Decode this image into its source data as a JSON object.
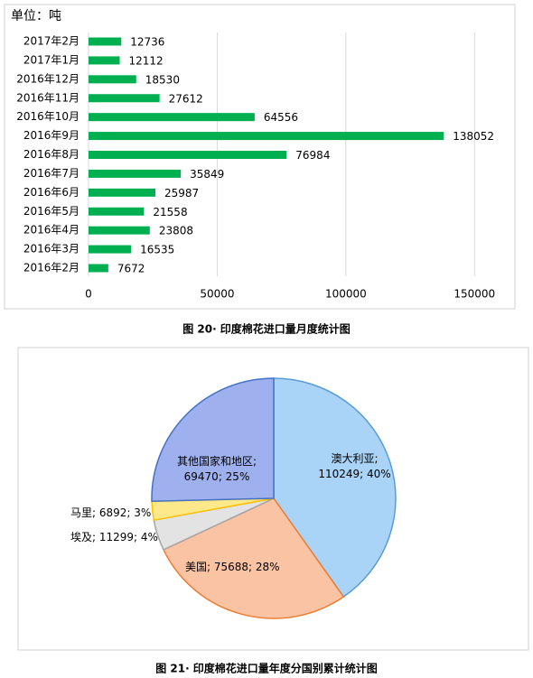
{
  "chart_data": [
    {
      "type": "bar",
      "title": "单位：吨",
      "categories": [
        "2017年2月",
        "2017年1月",
        "2016年12月",
        "2016年11月",
        "2016年10月",
        "2016年9月",
        "2016年8月",
        "2016年7月",
        "2016年6月",
        "2016年5月",
        "2016年4月",
        "2016年3月",
        "2016年2月"
      ],
      "values": [
        12736,
        12112,
        18530,
        27612,
        64556,
        138052,
        76984,
        35849,
        25987,
        21558,
        23808,
        16535,
        7672
      ],
      "color": "#00b050",
      "xlim": [
        0,
        165000
      ],
      "xticks": [
        0,
        50000,
        100000,
        150000
      ],
      "grid": true,
      "caption": "图 20· 印度棉花进口量月度统计图"
    },
    {
      "type": "pie",
      "values": [
        110249,
        75688,
        11299,
        6892,
        69470
      ],
      "value_labels": [
        "澳大利亚; 110249; 40%",
        "美国; 75688; 28%",
        "埃及; 11299; 4%",
        "马里; 6892; 3%",
        "其他国家和地区; 69470; 25%"
      ],
      "colors": [
        "#a9d3f7",
        "#f9c3a4",
        "#e3e3e3",
        "#fde98a",
        "#9fb0ee"
      ],
      "caption": "图 21· 印度棉花进口量年度分国别累计统计图"
    }
  ]
}
